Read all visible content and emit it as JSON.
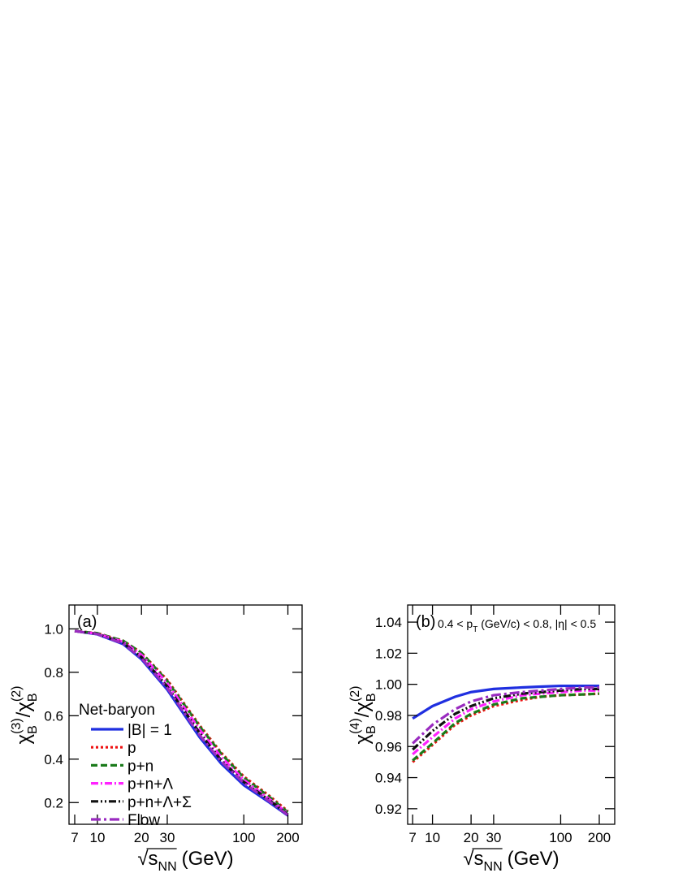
{
  "chart_data": [
    {
      "type": "line",
      "panel_label": "(a)",
      "ylabel": [
        {
          "main": "χ",
          "sub": "B",
          "sup": "(3)"
        },
        {
          "main": "/χ",
          "sub": "B",
          "sup": "(2)"
        }
      ],
      "xlabel": {
        "root": "√",
        "main": "s",
        "sub": "NN",
        "rest": "(GeV)"
      },
      "xscale": "log",
      "xlim": [
        6.4,
        250
      ],
      "xticks": [
        7,
        10,
        20,
        30,
        100,
        200
      ],
      "ylim": [
        0.1,
        1.11
      ],
      "yticks": [
        0.2,
        0.4,
        0.6,
        0.8,
        {
          "value": 1,
          "label": "1.0"
        }
      ],
      "legend_title": "Net-baryon",
      "x": [
        7,
        10,
        15,
        20,
        30,
        50,
        70,
        100,
        150,
        200
      ],
      "series": [
        {
          "name": "|B| = 1",
          "color": "#1f2fe0",
          "linestyle": "solid",
          "values": [
            0.99,
            0.975,
            0.93,
            0.86,
            0.72,
            0.5,
            0.38,
            0.28,
            0.2,
            0.14
          ]
        },
        {
          "name": "p",
          "color": "#ee1111",
          "linestyle": "dotted",
          "values": [
            0.99,
            0.98,
            0.945,
            0.89,
            0.765,
            0.555,
            0.43,
            0.32,
            0.23,
            0.16
          ]
        },
        {
          "name": "p+n",
          "color": "#1a7a1a",
          "linestyle": "dashed",
          "values": [
            0.99,
            0.98,
            0.945,
            0.89,
            0.76,
            0.55,
            0.425,
            0.315,
            0.225,
            0.155
          ]
        },
        {
          "name": "p+n+Λ",
          "color": "#ff22ff",
          "linestyle": "dashdot",
          "values": [
            0.99,
            0.978,
            0.94,
            0.88,
            0.75,
            0.535,
            0.41,
            0.305,
            0.215,
            0.15
          ]
        },
        {
          "name": "p+n+Λ+Σ",
          "color": "#111111",
          "linestyle": "dashdotdot",
          "values": [
            0.99,
            0.977,
            0.935,
            0.87,
            0.735,
            0.52,
            0.395,
            0.295,
            0.21,
            0.145
          ]
        },
        {
          "name": "Flow",
          "color": "#9a2bc0",
          "linestyle": "longdashdot",
          "values": [
            0.99,
            0.976,
            0.932,
            0.865,
            0.728,
            0.51,
            0.39,
            0.29,
            0.205,
            0.142
          ]
        }
      ]
    },
    {
      "type": "line",
      "panel_label": "(b)",
      "annotation": {
        "text": "0.4 < p",
        "sub": "T",
        "rest": " (GeV/c) < 0.8, |η| < 0.5"
      },
      "ylabel": [
        {
          "main": "χ",
          "sub": "B",
          "sup": "(4)"
        },
        {
          "main": "/χ",
          "sub": "B",
          "sup": "(2)"
        }
      ],
      "xlabel": {
        "root": "√",
        "main": "s",
        "sub": "NN",
        "rest": "(GeV)"
      },
      "xscale": "log",
      "xlim": [
        6.4,
        264
      ],
      "xticks": [
        7,
        10,
        20,
        30,
        100,
        200
      ],
      "ylim": [
        0.91,
        1.051
      ],
      "yticks": [
        0.92,
        0.94,
        0.96,
        0.98,
        {
          "value": 1,
          "label": "1.00"
        },
        1.02,
        1.04
      ],
      "x": [
        7,
        10,
        15,
        20,
        30,
        50,
        70,
        100,
        150,
        200
      ],
      "series": [
        {
          "name": "|B| = 1",
          "color": "#1f2fe0",
          "linestyle": "solid",
          "values": [
            0.978,
            0.986,
            0.992,
            0.995,
            0.997,
            0.998,
            0.9985,
            0.999,
            0.999,
            0.999
          ]
        },
        {
          "name": "p",
          "color": "#ee1111",
          "linestyle": "dotted",
          "values": [
            0.95,
            0.961,
            0.974,
            0.98,
            0.986,
            0.99,
            0.992,
            0.993,
            0.9935,
            0.994
          ]
        },
        {
          "name": "p+n",
          "color": "#1a7a1a",
          "linestyle": "dashed",
          "values": [
            0.951,
            0.962,
            0.975,
            0.981,
            0.987,
            0.991,
            0.992,
            0.993,
            0.9935,
            0.994
          ]
        },
        {
          "name": "p+n+Λ",
          "color": "#ff22ff",
          "linestyle": "dashdot",
          "values": [
            0.955,
            0.966,
            0.978,
            0.984,
            0.989,
            0.993,
            0.994,
            0.995,
            0.996,
            0.996
          ]
        },
        {
          "name": "p+n+Λ+Σ",
          "color": "#111111",
          "linestyle": "dashdotdot",
          "values": [
            0.958,
            0.97,
            0.981,
            0.986,
            0.991,
            0.994,
            0.995,
            0.996,
            0.997,
            0.997
          ]
        },
        {
          "name": "Flow",
          "color": "#9a2bc0",
          "linestyle": "longdashdot",
          "values": [
            0.962,
            0.974,
            0.984,
            0.989,
            0.993,
            0.995,
            0.996,
            0.997,
            0.998,
            0.998
          ]
        }
      ]
    }
  ]
}
